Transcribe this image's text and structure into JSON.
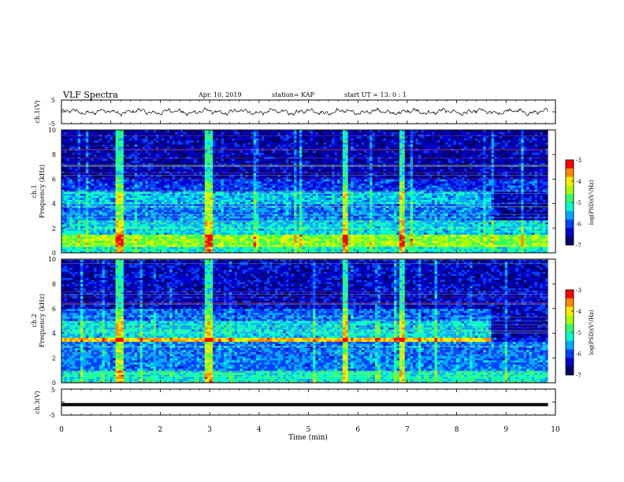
{
  "header": {
    "title": "VLF Spectra",
    "date": "Apr. 10, 2019",
    "station": "station= KAP",
    "start": "start  UT =   13: 0  : 1"
  },
  "chart_data": [
    {
      "type": "line",
      "ylabel": "ch.1(V)",
      "ylim": [
        -5,
        5
      ],
      "yticks": [
        "5",
        "-5"
      ],
      "xlim": [
        0,
        10
      ],
      "x_end": 9.85,
      "series": [
        {
          "description_values": "oscillating waveform roughly between -1.5 and 1.5 V"
        }
      ],
      "envelope": [
        -1.5,
        1.5
      ]
    },
    {
      "type": "heatmap",
      "ylabel": "ch.1\nFrequency (kHz)",
      "ylabel_parts": [
        "ch.1",
        "Frequency (kHz)"
      ],
      "ylim": [
        0,
        10
      ],
      "yticks": [
        "0",
        "2",
        "4",
        "6",
        "8",
        "10"
      ],
      "xlim": [
        0,
        10
      ],
      "x_end": 9.85,
      "colorbar": {
        "label": "log(PSD)(V²/Hz)",
        "range": [
          -7,
          -3
        ],
        "ticks": [
          "-3",
          "-4",
          "-5",
          "-6",
          "-7"
        ]
      },
      "features": {
        "change_time_min": 8.7,
        "strong_band_kHz": [
          0.5,
          1.5
        ],
        "lines_min": [
          1.15,
          2.95,
          5.7,
          6.85
        ]
      }
    },
    {
      "type": "heatmap",
      "ylabel_parts": [
        "ch.2",
        "Frequency (kHz)"
      ],
      "ylim": [
        0,
        10
      ],
      "yticks": [
        "0",
        "2",
        "4",
        "6",
        "8",
        "10"
      ],
      "xlim": [
        0,
        10
      ],
      "x_end": 9.85,
      "colorbar": {
        "label": "log(PSD)(V²/Hz)",
        "range": [
          -7,
          -3
        ],
        "ticks": [
          "-3",
          "-4",
          "-5",
          "-6",
          "-7"
        ]
      },
      "features": {
        "change_time_min": 8.7,
        "strong_band_kHz": [
          3.4,
          3.7
        ],
        "lines_min": [
          1.15,
          2.95,
          5.7,
          6.85
        ]
      }
    },
    {
      "type": "line",
      "ylabel": "ch.3(V)",
      "ylim": [
        -5,
        5
      ],
      "yticks": [
        "5",
        "-5"
      ],
      "xlim": [
        0,
        10
      ],
      "x_end": 9.85,
      "series": [
        {
          "constant_value": -1
        }
      ]
    }
  ],
  "xaxis": {
    "label": "Time (min)",
    "ticks": [
      "0",
      "1",
      "2",
      "3",
      "4",
      "5",
      "6",
      "7",
      "8",
      "9",
      "10"
    ]
  },
  "colors": {
    "spectral": [
      "#000066",
      "#0000cc",
      "#0044ff",
      "#00aaff",
      "#00ffcc",
      "#33ff66",
      "#aaff00",
      "#ffee00",
      "#ff8800",
      "#ff0000",
      "#ffffff"
    ]
  }
}
